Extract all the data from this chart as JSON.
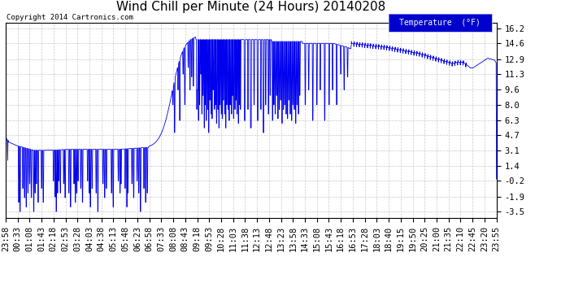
{
  "title": "Wind Chill per Minute (24 Hours) 20140208",
  "copyright": "Copyright 2014 Cartronics.com",
  "legend_label": "Temperature  (°F)",
  "legend_bg": "#0000cc",
  "legend_text_color": "#ffffff",
  "line_color": "#0000ee",
  "bg_color": "#ffffff",
  "plot_bg_color": "#ffffff",
  "grid_color": "#bbbbbb",
  "y_ticks": [
    -3.5,
    -1.9,
    -0.2,
    1.4,
    3.1,
    4.7,
    6.3,
    8.0,
    9.6,
    11.3,
    12.9,
    14.6,
    16.2
  ],
  "ylim": [
    -4.2,
    16.8
  ],
  "title_fontsize": 11,
  "tick_fontsize": 7.5,
  "x_labels": [
    "23:58",
    "00:33",
    "01:08",
    "01:43",
    "02:18",
    "02:53",
    "03:28",
    "04:03",
    "04:38",
    "05:13",
    "05:48",
    "06:23",
    "06:58",
    "07:33",
    "08:08",
    "08:43",
    "09:18",
    "09:53",
    "10:28",
    "11:03",
    "11:38",
    "12:13",
    "12:48",
    "13:23",
    "13:58",
    "14:33",
    "15:08",
    "15:43",
    "16:18",
    "16:53",
    "17:28",
    "18:03",
    "18:40",
    "19:15",
    "19:50",
    "20:25",
    "21:00",
    "21:35",
    "22:10",
    "22:45",
    "23:20",
    "23:55"
  ]
}
